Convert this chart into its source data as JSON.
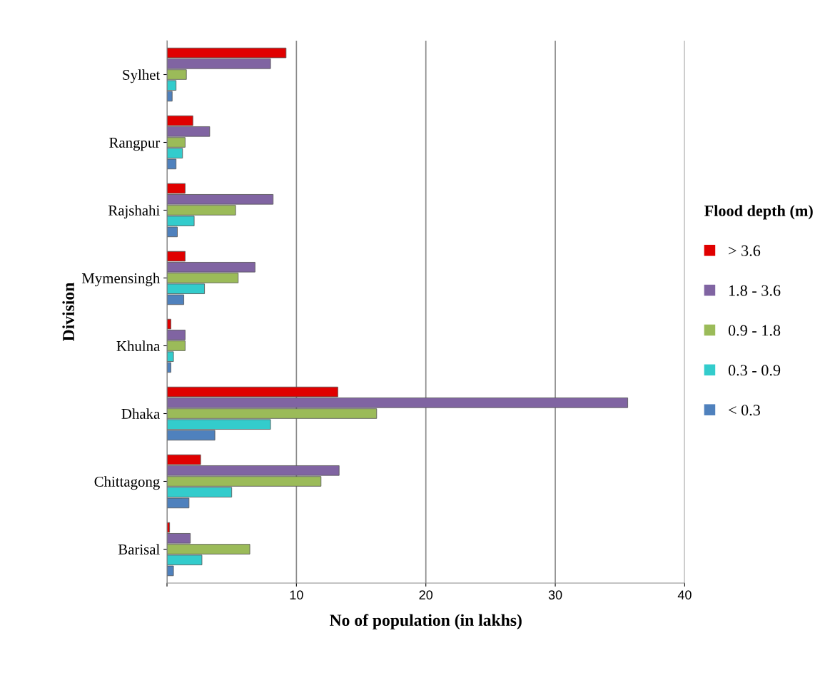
{
  "chart_data": {
    "type": "bar",
    "orientation": "horizontal",
    "xlabel": "No of population (in lakhs)",
    "ylabel": "Division",
    "legend_title": "Flood depth (m)",
    "legend": "right",
    "categories": [
      "Sylhet",
      "Rangpur",
      "Rajshahi",
      "Mymensingh",
      "Khulna",
      "Dhaka",
      "Chittagong",
      "Barisal"
    ],
    "series": [
      {
        "name": "> 3.6",
        "color": "#e00000",
        "values": [
          9.2,
          2.0,
          1.4,
          1.4,
          0.3,
          13.2,
          2.6,
          0.2
        ]
      },
      {
        "name": "1.8 - 3.6",
        "color": "#8064a2",
        "values": [
          8.0,
          3.3,
          8.2,
          6.8,
          1.4,
          35.6,
          13.3,
          1.8
        ]
      },
      {
        "name": "0.9 - 1.8",
        "color": "#9bbb59",
        "values": [
          1.5,
          1.4,
          5.3,
          5.5,
          1.4,
          16.2,
          11.9,
          6.4
        ]
      },
      {
        "name": "0.3 - 0.9",
        "color": "#33cccc",
        "values": [
          0.7,
          1.2,
          2.1,
          2.9,
          0.5,
          8.0,
          5.0,
          2.7
        ]
      },
      {
        "name": "< 0.3",
        "color": "#4f81bd",
        "values": [
          0.4,
          0.7,
          0.8,
          1.3,
          0.3,
          3.7,
          1.7,
          0.5
        ]
      }
    ],
    "xlim": [
      0,
      40
    ],
    "xticks": [
      {
        "value": 0,
        "label": null
      },
      10,
      20,
      30,
      40
    ],
    "grid": "x"
  }
}
